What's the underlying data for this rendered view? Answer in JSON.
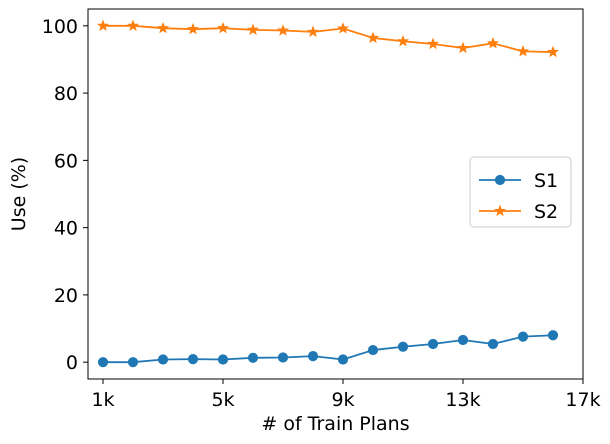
{
  "chart_data": {
    "type": "line",
    "xlabel": "# of Train Plans",
    "ylabel": "Use (%)",
    "xlim": [
      0.5,
      17
    ],
    "ylim": [
      -5,
      105
    ],
    "x_ticks": [
      {
        "value": 1,
        "label": "1k"
      },
      {
        "value": 5,
        "label": "5k"
      },
      {
        "value": 9,
        "label": "9k"
      },
      {
        "value": 13,
        "label": "13k"
      },
      {
        "value": 17,
        "label": "17k"
      }
    ],
    "y_ticks": [
      0,
      20,
      40,
      60,
      80,
      100
    ],
    "grid": false,
    "legend_position": "center-right",
    "x": [
      1,
      2,
      3,
      4,
      5,
      6,
      7,
      8,
      9,
      10,
      11,
      12,
      13,
      14,
      15,
      16
    ],
    "series": [
      {
        "name": "S1",
        "color": "#1f77b4",
        "marker": "circle",
        "values": [
          0.0,
          0.0,
          0.8,
          0.9,
          0.8,
          1.3,
          1.4,
          1.8,
          0.8,
          3.6,
          4.6,
          5.4,
          6.6,
          5.4,
          7.6,
          8.0
        ]
      },
      {
        "name": "S2",
        "color": "#ff7f0e",
        "marker": "star",
        "values": [
          100.0,
          100.0,
          99.3,
          99.0,
          99.3,
          98.8,
          98.6,
          98.2,
          99.2,
          96.4,
          95.4,
          94.6,
          93.4,
          94.8,
          92.4,
          92.2
        ]
      }
    ]
  }
}
